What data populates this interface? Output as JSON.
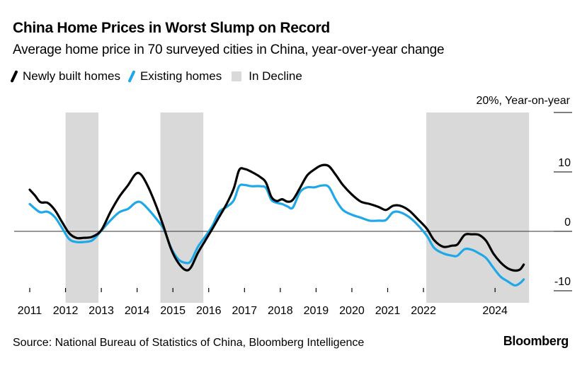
{
  "header": {
    "title": "China Home Prices in Worst Slump on Record",
    "subtitle": "Average home price in 70 surveyed cities in China, year-over-year change"
  },
  "legend": {
    "items": [
      {
        "label": "Newly built homes",
        "type": "line",
        "color": "#000000"
      },
      {
        "label": "Existing homes",
        "type": "line",
        "color": "#1fa8e8"
      },
      {
        "label": "In Decline",
        "type": "box",
        "color": "#d9d9d9"
      }
    ]
  },
  "footer": {
    "source": "Source: National Bureau of Statistics of China, Bloomberg Intelligence",
    "brand": "Bloomberg"
  },
  "chart_data": {
    "type": "line",
    "title": "China Home Prices in Worst Slump on Record",
    "subtitle": "Average home price in 70 surveyed cities in China, year-over-year change",
    "xlabel": "",
    "ylabel": "Year-on-year (%)",
    "y_unit_label": "20%, Year-on-year",
    "ylim": [
      -10,
      20
    ],
    "xlim": [
      2011,
      2024.95
    ],
    "yticks": [
      {
        "value": 20,
        "label": ""
      },
      {
        "value": 10,
        "label": "10"
      },
      {
        "value": 0,
        "label": "0"
      },
      {
        "value": -10,
        "label": "-10"
      }
    ],
    "xticks": [
      {
        "value": 2011,
        "label": "2011"
      },
      {
        "value": 2012,
        "label": "2012"
      },
      {
        "value": 2013,
        "label": "2013"
      },
      {
        "value": 2014,
        "label": "2014"
      },
      {
        "value": 2015,
        "label": "2015"
      },
      {
        "value": 2016,
        "label": "2016"
      },
      {
        "value": 2017,
        "label": "2017"
      },
      {
        "value": 2018,
        "label": "2018"
      },
      {
        "value": 2019,
        "label": "2019"
      },
      {
        "value": 2020,
        "label": "2020"
      },
      {
        "value": 2021,
        "label": "2021"
      },
      {
        "value": 2022,
        "label": "2022"
      },
      {
        "value": 2024,
        "label": "2024"
      }
    ],
    "y_axis_side": "right",
    "zero_line": true,
    "legend_position": "top-left",
    "shaded_periods": [
      {
        "label": "In Decline",
        "start": 2012.0,
        "end": 2012.92
      },
      {
        "label": "In Decline",
        "start": 2014.65,
        "end": 2015.85
      },
      {
        "label": "In Decline",
        "start": 2022.08,
        "end": 2024.95
      }
    ],
    "series": [
      {
        "name": "Newly built homes",
        "color": "#000000",
        "points": [
          [
            2011.0,
            7.0
          ],
          [
            2011.15,
            6.0
          ],
          [
            2011.3,
            4.9
          ],
          [
            2011.5,
            4.8
          ],
          [
            2011.7,
            3.6
          ],
          [
            2011.9,
            1.6
          ],
          [
            2012.1,
            -0.3
          ],
          [
            2012.3,
            -1.1
          ],
          [
            2012.5,
            -1.1
          ],
          [
            2012.75,
            -0.9
          ],
          [
            2013.0,
            0.2
          ],
          [
            2013.25,
            3.2
          ],
          [
            2013.5,
            5.8
          ],
          [
            2013.75,
            7.8
          ],
          [
            2013.95,
            9.6
          ],
          [
            2014.1,
            9.6
          ],
          [
            2014.3,
            7.6
          ],
          [
            2014.55,
            4.0
          ],
          [
            2014.75,
            0.6
          ],
          [
            2014.95,
            -3.0
          ],
          [
            2015.15,
            -5.3
          ],
          [
            2015.35,
            -6.5
          ],
          [
            2015.5,
            -6.1
          ],
          [
            2015.7,
            -3.6
          ],
          [
            2015.9,
            -1.6
          ],
          [
            2016.1,
            0.4
          ],
          [
            2016.3,
            2.5
          ],
          [
            2016.5,
            4.6
          ],
          [
            2016.7,
            7.2
          ],
          [
            2016.85,
            10.3
          ],
          [
            2017.0,
            10.5
          ],
          [
            2017.2,
            10.0
          ],
          [
            2017.45,
            9.1
          ],
          [
            2017.6,
            8.2
          ],
          [
            2017.75,
            5.8
          ],
          [
            2017.9,
            5.1
          ],
          [
            2018.05,
            5.4
          ],
          [
            2018.2,
            5.0
          ],
          [
            2018.35,
            5.3
          ],
          [
            2018.55,
            7.3
          ],
          [
            2018.75,
            9.4
          ],
          [
            2018.95,
            10.4
          ],
          [
            2019.15,
            11.1
          ],
          [
            2019.35,
            11.0
          ],
          [
            2019.55,
            9.5
          ],
          [
            2019.75,
            7.8
          ],
          [
            2020.0,
            6.2
          ],
          [
            2020.25,
            5.0
          ],
          [
            2020.5,
            4.6
          ],
          [
            2020.75,
            4.1
          ],
          [
            2020.95,
            3.6
          ],
          [
            2021.15,
            4.3
          ],
          [
            2021.35,
            4.3
          ],
          [
            2021.6,
            3.5
          ],
          [
            2021.85,
            2.0
          ],
          [
            2022.1,
            0.4
          ],
          [
            2022.3,
            -1.5
          ],
          [
            2022.55,
            -2.6
          ],
          [
            2022.8,
            -2.4
          ],
          [
            2022.95,
            -2.2
          ],
          [
            2023.15,
            -0.6
          ],
          [
            2023.35,
            -0.5
          ],
          [
            2023.55,
            -0.6
          ],
          [
            2023.75,
            -1.6
          ],
          [
            2023.95,
            -3.7
          ],
          [
            2024.15,
            -5.2
          ],
          [
            2024.35,
            -6.2
          ],
          [
            2024.55,
            -6.6
          ],
          [
            2024.7,
            -6.4
          ],
          [
            2024.8,
            -5.6
          ]
        ]
      },
      {
        "name": "Existing homes",
        "color": "#1fa8e8",
        "points": [
          [
            2011.0,
            4.6
          ],
          [
            2011.15,
            3.8
          ],
          [
            2011.3,
            3.2
          ],
          [
            2011.5,
            3.3
          ],
          [
            2011.7,
            2.4
          ],
          [
            2011.9,
            0.6
          ],
          [
            2012.1,
            -1.3
          ],
          [
            2012.3,
            -1.8
          ],
          [
            2012.5,
            -1.8
          ],
          [
            2012.75,
            -1.5
          ],
          [
            2013.0,
            0.1
          ],
          [
            2013.25,
            1.8
          ],
          [
            2013.5,
            3.2
          ],
          [
            2013.75,
            3.8
          ],
          [
            2013.95,
            4.8
          ],
          [
            2014.1,
            4.9
          ],
          [
            2014.3,
            3.8
          ],
          [
            2014.55,
            2.0
          ],
          [
            2014.75,
            0.3
          ],
          [
            2014.95,
            -2.8
          ],
          [
            2015.15,
            -4.7
          ],
          [
            2015.35,
            -5.3
          ],
          [
            2015.5,
            -5.0
          ],
          [
            2015.7,
            -2.6
          ],
          [
            2015.9,
            -0.9
          ],
          [
            2016.1,
            0.9
          ],
          [
            2016.3,
            3.3
          ],
          [
            2016.5,
            4.1
          ],
          [
            2016.7,
            5.2
          ],
          [
            2016.85,
            7.6
          ],
          [
            2017.0,
            7.8
          ],
          [
            2017.2,
            7.6
          ],
          [
            2017.45,
            7.6
          ],
          [
            2017.6,
            7.3
          ],
          [
            2017.75,
            5.3
          ],
          [
            2017.9,
            4.8
          ],
          [
            2018.05,
            4.6
          ],
          [
            2018.2,
            4.2
          ],
          [
            2018.35,
            4.0
          ],
          [
            2018.55,
            6.6
          ],
          [
            2018.75,
            7.4
          ],
          [
            2018.95,
            7.4
          ],
          [
            2019.15,
            7.7
          ],
          [
            2019.35,
            7.5
          ],
          [
            2019.55,
            5.3
          ],
          [
            2019.75,
            3.6
          ],
          [
            2020.0,
            2.8
          ],
          [
            2020.25,
            2.3
          ],
          [
            2020.5,
            1.8
          ],
          [
            2020.75,
            1.8
          ],
          [
            2020.95,
            1.9
          ],
          [
            2021.15,
            3.2
          ],
          [
            2021.35,
            3.2
          ],
          [
            2021.6,
            2.4
          ],
          [
            2021.85,
            1.0
          ],
          [
            2022.1,
            -0.8
          ],
          [
            2022.3,
            -2.8
          ],
          [
            2022.55,
            -3.7
          ],
          [
            2022.8,
            -4.1
          ],
          [
            2022.95,
            -4.1
          ],
          [
            2023.15,
            -3.0
          ],
          [
            2023.35,
            -3.1
          ],
          [
            2023.55,
            -3.7
          ],
          [
            2023.75,
            -4.5
          ],
          [
            2023.95,
            -6.1
          ],
          [
            2024.15,
            -7.6
          ],
          [
            2024.35,
            -8.4
          ],
          [
            2024.55,
            -9.1
          ],
          [
            2024.7,
            -8.7
          ],
          [
            2024.8,
            -8.1
          ]
        ]
      }
    ]
  }
}
